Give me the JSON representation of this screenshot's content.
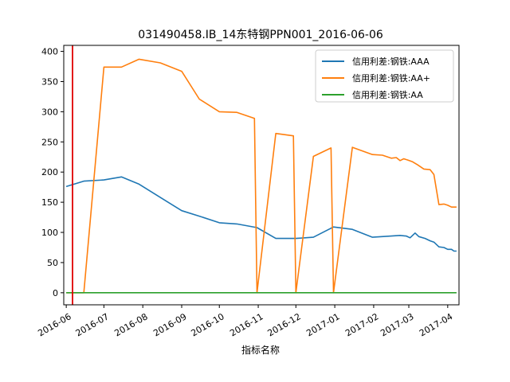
{
  "chart_data": {
    "type": "line",
    "title": "031490458.IB_14东特钢PPN001_2016-06-06",
    "xlabel": "指标名称",
    "ylabel": "",
    "xlim": [
      "2016-05-30",
      "2017-04-10"
    ],
    "ylim": [
      -20,
      410
    ],
    "x_ticks": [
      "2016-06",
      "2016-07",
      "2016-08",
      "2016-09",
      "2016-10",
      "2016-11",
      "2016-12",
      "2017-01",
      "2017-02",
      "2017-03",
      "2017-04"
    ],
    "x_tick_dates": [
      "2016-06-01",
      "2016-07-01",
      "2016-08-01",
      "2016-09-01",
      "2016-10-01",
      "2016-11-01",
      "2016-12-01",
      "2017-01-01",
      "2017-02-01",
      "2017-03-01",
      "2017-04-01"
    ],
    "y_ticks": [
      0,
      50,
      100,
      150,
      200,
      250,
      300,
      350,
      400
    ],
    "grid": false,
    "legend_position": "top-right",
    "vline": {
      "x": "2016-06-06",
      "color": "#e00000"
    },
    "series": [
      {
        "name": "信用利差:钢铁:AAA",
        "color": "#1f77b4",
        "points": [
          [
            "2016-06-01",
            176
          ],
          [
            "2016-06-15",
            185
          ],
          [
            "2016-07-01",
            187
          ],
          [
            "2016-07-15",
            192
          ],
          [
            "2016-07-29",
            180
          ],
          [
            "2016-08-15",
            158
          ],
          [
            "2016-09-01",
            136
          ],
          [
            "2016-09-15",
            127
          ],
          [
            "2016-10-01",
            116
          ],
          [
            "2016-10-15",
            114
          ],
          [
            "2016-10-31",
            108
          ],
          [
            "2016-11-15",
            90
          ],
          [
            "2016-12-01",
            90
          ],
          [
            "2016-12-15",
            92
          ],
          [
            "2016-12-31",
            109
          ],
          [
            "2017-01-15",
            105
          ],
          [
            "2017-01-31",
            92
          ],
          [
            "2017-02-15",
            94
          ],
          [
            "2017-02-22",
            95
          ],
          [
            "2017-02-27",
            94
          ],
          [
            "2017-03-02",
            91
          ],
          [
            "2017-03-06",
            99
          ],
          [
            "2017-03-09",
            93
          ],
          [
            "2017-03-14",
            90
          ],
          [
            "2017-03-18",
            86
          ],
          [
            "2017-03-21",
            84
          ],
          [
            "2017-03-25",
            76
          ],
          [
            "2017-03-29",
            75
          ],
          [
            "2017-04-01",
            72
          ],
          [
            "2017-04-04",
            72
          ],
          [
            "2017-04-06",
            69
          ],
          [
            "2017-04-08",
            69
          ]
        ]
      },
      {
        "name": "信用利差:钢铁:AA+",
        "color": "#ff7f0e",
        "points": [
          [
            "2016-06-01",
            0
          ],
          [
            "2016-06-15",
            0
          ],
          [
            "2016-07-01",
            374
          ],
          [
            "2016-07-15",
            374
          ],
          [
            "2016-07-29",
            387
          ],
          [
            "2016-08-15",
            381
          ],
          [
            "2016-09-01",
            367
          ],
          [
            "2016-09-15",
            321
          ],
          [
            "2016-10-01",
            300
          ],
          [
            "2016-10-15",
            299
          ],
          [
            "2016-10-29",
            289
          ],
          [
            "2016-10-31",
            0
          ],
          [
            "2016-11-15",
            264
          ],
          [
            "2016-11-29",
            260
          ],
          [
            "2016-12-01",
            0
          ],
          [
            "2016-12-15",
            226
          ],
          [
            "2016-12-29",
            240
          ],
          [
            "2016-12-31",
            0
          ],
          [
            "2017-01-15",
            241
          ],
          [
            "2017-01-31",
            229
          ],
          [
            "2017-02-08",
            228
          ],
          [
            "2017-02-15",
            223
          ],
          [
            "2017-02-19",
            224
          ],
          [
            "2017-02-22",
            219
          ],
          [
            "2017-02-25",
            222
          ],
          [
            "2017-02-28",
            220
          ],
          [
            "2017-03-04",
            217
          ],
          [
            "2017-03-08",
            212
          ],
          [
            "2017-03-13",
            205
          ],
          [
            "2017-03-18",
            204
          ],
          [
            "2017-03-21",
            196
          ],
          [
            "2017-03-25",
            146
          ],
          [
            "2017-03-29",
            147
          ],
          [
            "2017-04-01",
            145
          ],
          [
            "2017-04-04",
            142
          ],
          [
            "2017-04-08",
            142
          ]
        ]
      },
      {
        "name": "信用利差:钢铁:AA",
        "color": "#2ca02c",
        "points": [
          [
            "2016-06-01",
            0
          ],
          [
            "2016-09-01",
            0
          ],
          [
            "2016-12-01",
            0
          ],
          [
            "2017-03-01",
            0
          ],
          [
            "2017-04-08",
            0
          ]
        ]
      }
    ]
  }
}
